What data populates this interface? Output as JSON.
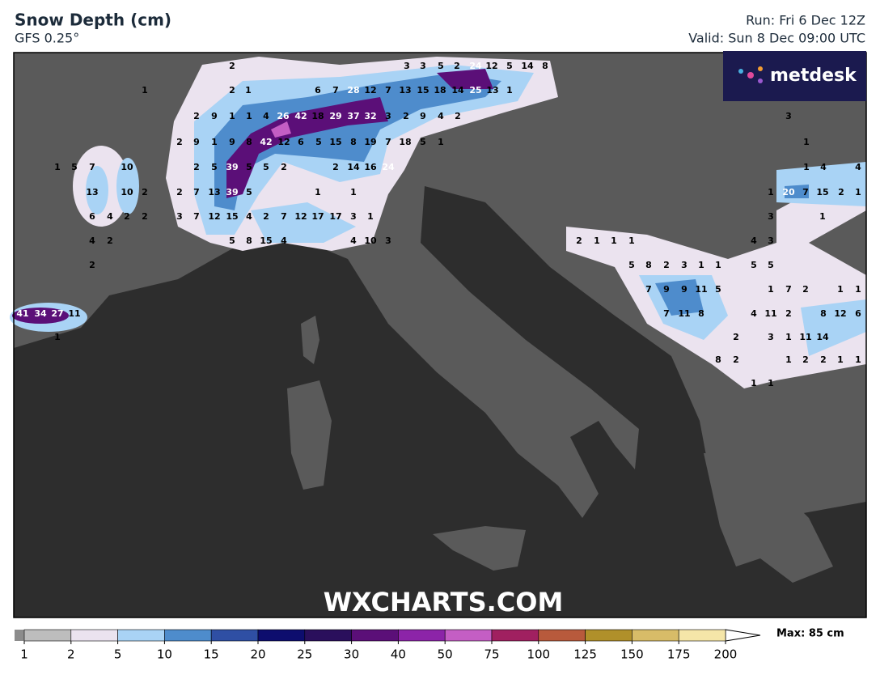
{
  "header": {
    "title": "Snow Depth (cm)",
    "model": "GFS 0.25°",
    "run": "Run: Fri 6 Dec 12Z",
    "valid": "Valid: Sun 8 Dec 09:00 UTC"
  },
  "logo": "metdesk",
  "watermark": "WXCHARTS.COM",
  "map": {
    "labels": [
      2,
      3,
      3,
      5,
      2,
      24,
      12,
      5,
      14,
      8,
      1,
      2,
      1,
      6,
      7,
      28,
      12,
      7,
      13,
      15,
      18,
      14,
      25,
      13,
      1,
      2,
      9,
      1,
      1,
      4,
      26,
      42,
      18,
      29,
      37,
      32,
      3,
      2,
      9,
      4,
      2,
      3,
      2,
      9,
      1,
      9,
      8,
      42,
      12,
      6,
      5,
      15,
      8,
      19,
      7,
      18,
      5,
      1,
      1,
      1,
      5,
      7,
      10,
      2,
      5,
      39,
      5,
      5,
      2,
      2,
      14,
      16,
      24,
      1,
      4,
      4,
      13,
      10,
      2,
      2,
      7,
      13,
      39,
      5,
      1,
      1,
      1,
      20,
      7,
      15,
      2,
      1,
      6,
      4,
      2,
      2,
      3,
      7,
      12,
      15,
      4,
      2,
      7,
      12,
      17,
      17,
      3,
      1,
      3,
      1,
      4,
      2,
      5,
      8,
      15,
      4,
      4,
      10,
      3,
      2,
      1,
      1,
      1,
      4,
      3,
      2,
      5,
      8,
      2,
      3,
      1,
      1,
      5,
      5,
      7,
      9,
      9,
      11,
      5,
      1,
      7,
      2,
      1,
      1,
      41,
      34,
      27,
      11,
      7,
      11,
      8,
      4,
      11,
      2,
      8,
      12,
      6,
      1,
      2,
      3,
      1,
      11,
      14,
      8,
      2,
      1,
      2,
      2,
      1,
      1,
      1,
      1
    ]
  },
  "colorbar": {
    "ticks": [
      1,
      2,
      5,
      10,
      15,
      20,
      25,
      30,
      40,
      50,
      75,
      100,
      125,
      150,
      175,
      200
    ],
    "colors": [
      "#bdbdbd",
      "#ebe3ef",
      "#a9d3f5",
      "#4e8ccc",
      "#2f4fa4",
      "#0d0d6e",
      "#2a0f5c",
      "#5b0f78",
      "#8c24a8",
      "#c45ec4",
      "#a02060",
      "#b85a3c",
      "#b0902a",
      "#d8bc68",
      "#f5e6a8"
    ],
    "max": "Max: 85 cm"
  }
}
